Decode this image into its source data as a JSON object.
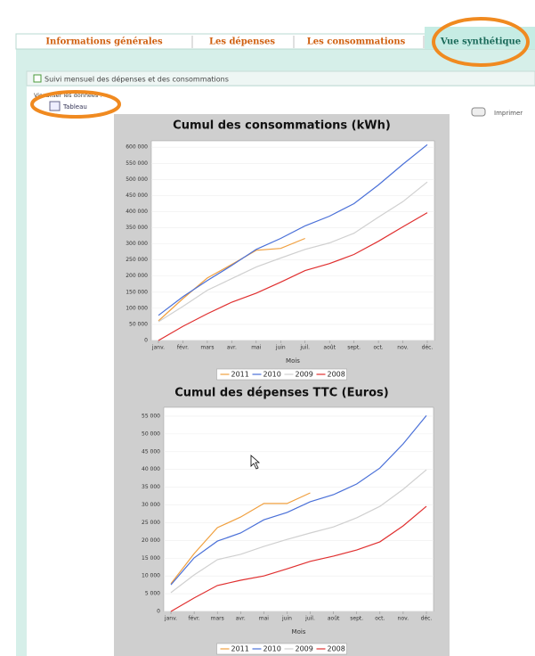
{
  "tabs": [
    "Informations générales",
    "Les dépenses",
    "Les consommations",
    "Vue synthétique"
  ],
  "panel": {
    "title": "Suivi mensuel des dépenses et des consommations",
    "view_label": "Visualiser les données :",
    "table_button": "Tableau",
    "print_button": "Imprimer"
  },
  "chart_data": [
    {
      "type": "line",
      "title": "Cumul des consommations (kWh)",
      "xlabel": "Mois",
      "categories": [
        "janv.",
        "févr.",
        "mars",
        "avr.",
        "mai",
        "juin",
        "juil.",
        "août",
        "sept.",
        "oct.",
        "nov.",
        "déc."
      ],
      "ylim": [
        0,
        620000
      ],
      "yticks": [
        0,
        {
          "value": 50000,
          "label": "50 000"
        },
        {
          "value": 100000,
          "label": "100 000"
        },
        {
          "value": 150000,
          "label": "150 000"
        },
        {
          "value": 200000,
          "label": "200 000"
        },
        {
          "value": 250000,
          "label": "250 000"
        },
        {
          "value": 300000,
          "label": "300 000"
        },
        {
          "value": 350000,
          "label": "350 000"
        },
        {
          "value": 400000,
          "label": "400 000"
        },
        {
          "value": 450000,
          "label": "450 000"
        },
        {
          "value": 500000,
          "label": "500 000"
        },
        {
          "value": 550000,
          "label": "550 000"
        },
        {
          "value": 600000,
          "label": "600 000"
        }
      ],
      "grid": true,
      "series": [
        {
          "name": "2011",
          "color": "#f0a040",
          "values": [
            61000,
            130000,
            194000,
            236000,
            280000,
            286000,
            317000,
            null,
            null,
            null,
            null,
            null
          ]
        },
        {
          "name": "2010",
          "color": "#4a70d8",
          "values": [
            78000,
            136000,
            186000,
            233000,
            283000,
            317000,
            356000,
            386000,
            425000,
            483000,
            547000,
            608000
          ]
        },
        {
          "name": "2009",
          "color": "#d0d0d0",
          "values": [
            58000,
            106000,
            156000,
            192000,
            228000,
            256000,
            283000,
            303000,
            333000,
            383000,
            431000,
            492000
          ]
        },
        {
          "name": "2008",
          "color": "#e03030",
          "values": [
            0,
            44000,
            83000,
            119000,
            147000,
            181000,
            217000,
            239000,
            267000,
            308000,
            353000,
            397000
          ]
        }
      ]
    },
    {
      "type": "line",
      "title": "Cumul des dépenses TTC (Euros)",
      "xlabel": "Mois",
      "categories": [
        "janv.",
        "févr.",
        "mars",
        "avr.",
        "mai",
        "juin",
        "juil.",
        "août",
        "sept.",
        "oct.",
        "nov.",
        "déc."
      ],
      "ylim": [
        0,
        57500
      ],
      "yticks": [
        0,
        {
          "value": 5000,
          "label": "5 000"
        },
        {
          "value": 10000,
          "label": "10 000"
        },
        {
          "value": 15000,
          "label": "15 000"
        },
        {
          "value": 20000,
          "label": "20 000"
        },
        {
          "value": 25000,
          "label": "25 000"
        },
        {
          "value": 30000,
          "label": "30 000"
        },
        {
          "value": 35000,
          "label": "35 000"
        },
        {
          "value": 40000,
          "label": "40 000"
        },
        {
          "value": 45000,
          "label": "45 000"
        },
        {
          "value": 50000,
          "label": "50 000"
        },
        {
          "value": 55000,
          "label": "55 000"
        }
      ],
      "grid": true,
      "series": [
        {
          "name": "2011",
          "color": "#f0a040",
          "values": [
            7800,
            16300,
            23600,
            26600,
            30400,
            30400,
            33400,
            null,
            null,
            null,
            null,
            null
          ]
        },
        {
          "name": "2010",
          "color": "#4a70d8",
          "values": [
            7500,
            15100,
            19800,
            22100,
            25800,
            27900,
            30900,
            32900,
            35900,
            40400,
            47200,
            55200
          ]
        },
        {
          "name": "2009",
          "color": "#d0d0d0",
          "values": [
            5300,
            10300,
            14600,
            16100,
            18300,
            20300,
            22100,
            23800,
            26400,
            29600,
            34400,
            39900
          ]
        },
        {
          "name": "2008",
          "color": "#e03030",
          "values": [
            0,
            3800,
            7300,
            8800,
            10000,
            12000,
            14100,
            15600,
            17300,
            19600,
            24100,
            29600
          ]
        }
      ]
    }
  ]
}
